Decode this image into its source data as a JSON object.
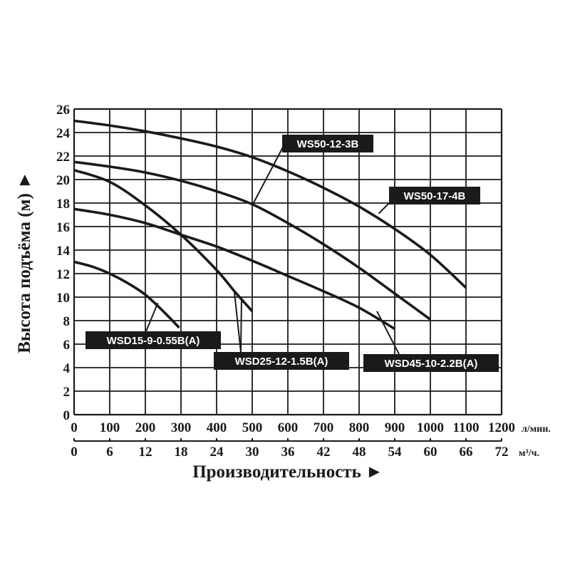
{
  "chart_data": {
    "type": "line",
    "xlabel": "Производительность ►",
    "ylabel": "Высота подъёма (м) ►",
    "x_unit_primary": "л/мин.",
    "x_unit_secondary": "м³/ч.",
    "xlim": [
      0,
      1200
    ],
    "ylim": [
      0,
      26
    ],
    "x_ticks": [
      "0",
      "100",
      "200",
      "300",
      "400",
      "500",
      "600",
      "700",
      "800",
      "900",
      "1000",
      "1100",
      "1200"
    ],
    "x_ticks_secondary": [
      "0",
      "6",
      "12",
      "18",
      "24",
      "30",
      "36",
      "42",
      "48",
      "54",
      "60",
      "66",
      "72"
    ],
    "y_ticks": [
      "0",
      "2",
      "4",
      "6",
      "8",
      "10",
      "12",
      "14",
      "16",
      "18",
      "20",
      "22",
      "24",
      "26"
    ],
    "grid": true,
    "series": [
      {
        "name": "WSD15-9-0.55B(A)",
        "x": [
          0,
          50,
          100,
          150,
          200,
          250,
          295
        ],
        "y": [
          13.0,
          12.6,
          12.0,
          11.2,
          10.2,
          8.8,
          7.4
        ]
      },
      {
        "name": "WSD25-12-1.5B(A)",
        "x": [
          0,
          100,
          200,
          300,
          400,
          450,
          500
        ],
        "y": [
          20.8,
          19.8,
          17.8,
          15.3,
          12.3,
          10.5,
          8.8
        ]
      },
      {
        "name": "WSD45-10-2.2B(A)",
        "x": [
          0,
          100,
          200,
          300,
          400,
          500,
          600,
          700,
          800,
          900
        ],
        "y": [
          17.5,
          17.0,
          16.3,
          15.3,
          14.3,
          13.1,
          11.8,
          10.5,
          9.1,
          7.3
        ]
      },
      {
        "name": "WS50-12-3B",
        "x": [
          0,
          100,
          200,
          300,
          400,
          500,
          600,
          700,
          800,
          900,
          1000
        ],
        "y": [
          21.5,
          21.1,
          20.6,
          19.9,
          19.0,
          17.9,
          16.3,
          14.5,
          12.5,
          10.3,
          8.1
        ]
      },
      {
        "name": "WS50-17-4B",
        "x": [
          0,
          100,
          200,
          300,
          400,
          500,
          600,
          700,
          800,
          900,
          1000,
          1100
        ],
        "y": [
          25.0,
          24.6,
          24.1,
          23.5,
          22.8,
          21.9,
          20.7,
          19.3,
          17.7,
          15.8,
          13.6,
          10.8
        ]
      }
    ],
    "annotations": [
      {
        "text": "WS50-12-3B",
        "points_to": [
          500,
          17.8
        ]
      },
      {
        "text": "WS50-17-4B",
        "points_to": [
          855,
          17.1
        ]
      },
      {
        "text": "WSD15-9-0.55B(A)",
        "points_to": [
          235,
          9.5
        ]
      },
      {
        "text": "WSD25-12-1.5B(A)",
        "points_to": [
          450,
          10.4
        ]
      },
      {
        "text": "WSD25-12-1.5B(A)",
        "points_to": [
          470,
          10.0
        ]
      },
      {
        "text": "WSD45-10-2.2B(A)",
        "points_to": [
          850,
          8.8
        ]
      }
    ]
  }
}
